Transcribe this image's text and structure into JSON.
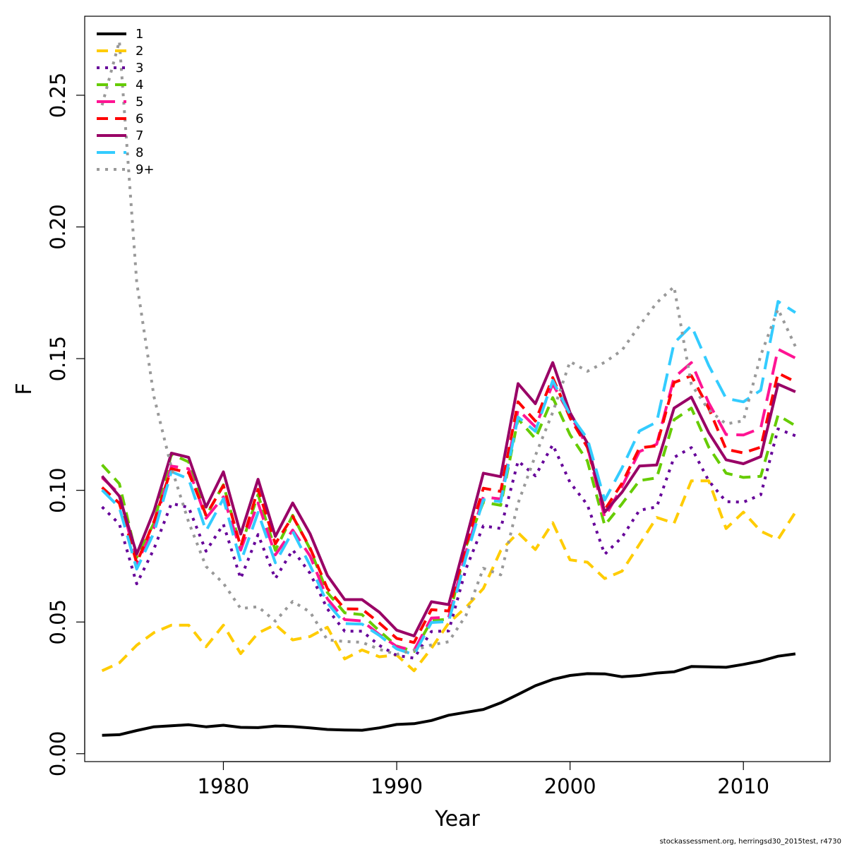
{
  "chart_data": {
    "type": "line",
    "title": "",
    "xlabel": "Year",
    "ylabel": "F",
    "xlim": [
      1972,
      2015
    ],
    "ylim": [
      -0.003,
      0.28
    ],
    "x_ticks": [
      1980,
      1990,
      2000,
      2010
    ],
    "x_tick_labels": [
      "1980",
      "1990",
      "2000",
      "2010"
    ],
    "y_ticks": [
      0,
      0.05,
      0.1,
      0.15,
      0.2,
      0.25
    ],
    "y_tick_labels": [
      "0.00",
      "0.05",
      "0.10",
      "0.15",
      "0.20",
      "0.25"
    ],
    "legend_position": "top-left",
    "grid": false,
    "x": [
      1973,
      1974,
      1975,
      1976,
      1977,
      1978,
      1979,
      1980,
      1981,
      1982,
      1983,
      1984,
      1985,
      1986,
      1987,
      1988,
      1989,
      1990,
      1991,
      1992,
      1993,
      1994,
      1995,
      1996,
      1997,
      1998,
      1999,
      2000,
      2001,
      2002,
      2003,
      2004,
      2005,
      2006,
      2007,
      2008,
      2009,
      2010,
      2011,
      2012,
      2013
    ],
    "series": [
      {
        "name": "1",
        "color": "#000000",
        "dash": "solid",
        "values": [
          0.007,
          0.0072,
          0.0088,
          0.0102,
          0.0106,
          0.011,
          0.0102,
          0.0108,
          0.01,
          0.0099,
          0.0105,
          0.0103,
          0.0098,
          0.0092,
          0.009,
          0.0089,
          0.0098,
          0.0111,
          0.0114,
          0.0126,
          0.0146,
          0.0157,
          0.0168,
          0.0193,
          0.0225,
          0.0258,
          0.0282,
          0.0297,
          0.0304,
          0.0303,
          0.0292,
          0.0297,
          0.0306,
          0.0311,
          0.0331,
          0.033,
          0.0328,
          0.0339,
          0.0352,
          0.037,
          0.0379
        ]
      },
      {
        "name": "2",
        "color": "#ffcc00",
        "dash": "dashed",
        "values": [
          0.0315,
          0.0345,
          0.0412,
          0.046,
          0.0488,
          0.0488,
          0.0406,
          0.0488,
          0.038,
          0.0458,
          0.049,
          0.0432,
          0.0445,
          0.048,
          0.036,
          0.0394,
          0.0368,
          0.0375,
          0.0315,
          0.04,
          0.0496,
          0.0556,
          0.0627,
          0.0771,
          0.0839,
          0.0775,
          0.0877,
          0.0736,
          0.0727,
          0.0665,
          0.0693,
          0.0795,
          0.0897,
          0.0875,
          0.1036,
          0.1036,
          0.0855,
          0.0917,
          0.0845,
          0.0814,
          0.0917
        ]
      },
      {
        "name": "3",
        "color": "#660099",
        "dash": "dotted",
        "values": [
          0.0937,
          0.0872,
          0.0645,
          0.0778,
          0.095,
          0.0935,
          0.0769,
          0.0871,
          0.0665,
          0.0832,
          0.0665,
          0.0774,
          0.0685,
          0.055,
          0.0465,
          0.0465,
          0.0411,
          0.0373,
          0.0363,
          0.0464,
          0.0466,
          0.0703,
          0.0865,
          0.0855,
          0.1111,
          0.1055,
          0.1173,
          0.103,
          0.0945,
          0.0757,
          0.0822,
          0.0924,
          0.0937,
          0.1125,
          0.1162,
          0.1036,
          0.0957,
          0.0955,
          0.0983,
          0.1233,
          0.1207
        ]
      },
      {
        "name": "4",
        "color": "#66cc00",
        "dash": "dashed",
        "values": [
          0.1097,
          0.1025,
          0.0745,
          0.0876,
          0.1137,
          0.1108,
          0.0902,
          0.1021,
          0.0784,
          0.0984,
          0.0772,
          0.0905,
          0.0777,
          0.0612,
          0.0535,
          0.0528,
          0.0466,
          0.0409,
          0.0388,
          0.0505,
          0.0511,
          0.0787,
          0.0955,
          0.0943,
          0.1271,
          0.1196,
          0.1352,
          0.1211,
          0.1111,
          0.0867,
          0.0949,
          0.1037,
          0.1047,
          0.1268,
          0.1312,
          0.1164,
          0.1065,
          0.1049,
          0.1053,
          0.1285,
          0.1245
        ]
      },
      {
        "name": "5",
        "color": "#ff1493",
        "dash": "longdash",
        "values": [
          0.1048,
          0.0987,
          0.0722,
          0.0859,
          0.1092,
          0.1082,
          0.0894,
          0.0975,
          0.0773,
          0.0952,
          0.0755,
          0.0849,
          0.0751,
          0.0588,
          0.0509,
          0.0504,
          0.0452,
          0.0407,
          0.0392,
          0.0515,
          0.0518,
          0.0767,
          0.0975,
          0.0967,
          0.1306,
          0.1241,
          0.1403,
          0.1287,
          0.1166,
          0.0897,
          0.1015,
          0.1147,
          0.1175,
          0.1428,
          0.1485,
          0.1332,
          0.1212,
          0.121,
          0.1236,
          0.1536,
          0.1502
        ]
      },
      {
        "name": "6",
        "color": "#ff0000",
        "dash": "dashed",
        "values": [
          0.1011,
          0.0951,
          0.0725,
          0.0882,
          0.1082,
          0.1067,
          0.0906,
          0.1018,
          0.0786,
          0.1004,
          0.0797,
          0.0901,
          0.0781,
          0.0627,
          0.055,
          0.0549,
          0.0496,
          0.0438,
          0.0422,
          0.0547,
          0.0542,
          0.0793,
          0.1008,
          0.0996,
          0.1336,
          0.1263,
          0.1428,
          0.1275,
          0.1163,
          0.0926,
          0.1027,
          0.1161,
          0.1169,
          0.1409,
          0.1435,
          0.1311,
          0.1156,
          0.1142,
          0.1164,
          0.1445,
          0.1412
        ]
      },
      {
        "name": "7",
        "color": "#990066",
        "dash": "solid",
        "values": [
          0.1054,
          0.0978,
          0.0758,
          0.0922,
          0.1141,
          0.1125,
          0.0936,
          0.107,
          0.0834,
          0.1042,
          0.0825,
          0.0952,
          0.0835,
          0.0677,
          0.0585,
          0.0585,
          0.0537,
          0.0469,
          0.0447,
          0.0577,
          0.0566,
          0.0814,
          0.1065,
          0.1052,
          0.1405,
          0.1329,
          0.1485,
          0.1295,
          0.1179,
          0.0917,
          0.0993,
          0.1092,
          0.1096,
          0.1312,
          0.1354,
          0.1219,
          0.1116,
          0.1101,
          0.1128,
          0.1403,
          0.1374
        ]
      },
      {
        "name": "8",
        "color": "#33ccff",
        "dash": "longdash",
        "values": [
          0.1001,
          0.0935,
          0.0701,
          0.0839,
          0.1071,
          0.1043,
          0.0846,
          0.0968,
          0.0728,
          0.0916,
          0.0725,
          0.0844,
          0.0715,
          0.0572,
          0.0494,
          0.0492,
          0.0449,
          0.0398,
          0.0376,
          0.0498,
          0.0502,
          0.0746,
          0.0964,
          0.0957,
          0.1278,
          0.1224,
          0.1417,
          0.1288,
          0.1196,
          0.0963,
          0.1085,
          0.1225,
          0.1259,
          0.1559,
          0.1625,
          0.1474,
          0.1349,
          0.1336,
          0.138,
          0.1717,
          0.1675
        ]
      },
      {
        "name": "9+",
        "color": "#999999",
        "dash": "dotted",
        "values": [
          0.2462,
          0.2705,
          0.179,
          0.1355,
          0.1087,
          0.0879,
          0.0711,
          0.0647,
          0.0551,
          0.0558,
          0.0503,
          0.0578,
          0.0538,
          0.0432,
          0.0426,
          0.0423,
          0.0396,
          0.0377,
          0.0393,
          0.0413,
          0.0425,
          0.0526,
          0.0704,
          0.0679,
          0.0951,
          0.1132,
          0.1296,
          0.1489,
          0.1452,
          0.1486,
          0.1532,
          0.1625,
          0.1712,
          0.1773,
          0.1402,
          0.1305,
          0.1252,
          0.1264,
          0.1513,
          0.1688,
          0.1546
        ]
      }
    ]
  },
  "footer": "stockassessment.org, herringsd30_2015test, r4730"
}
